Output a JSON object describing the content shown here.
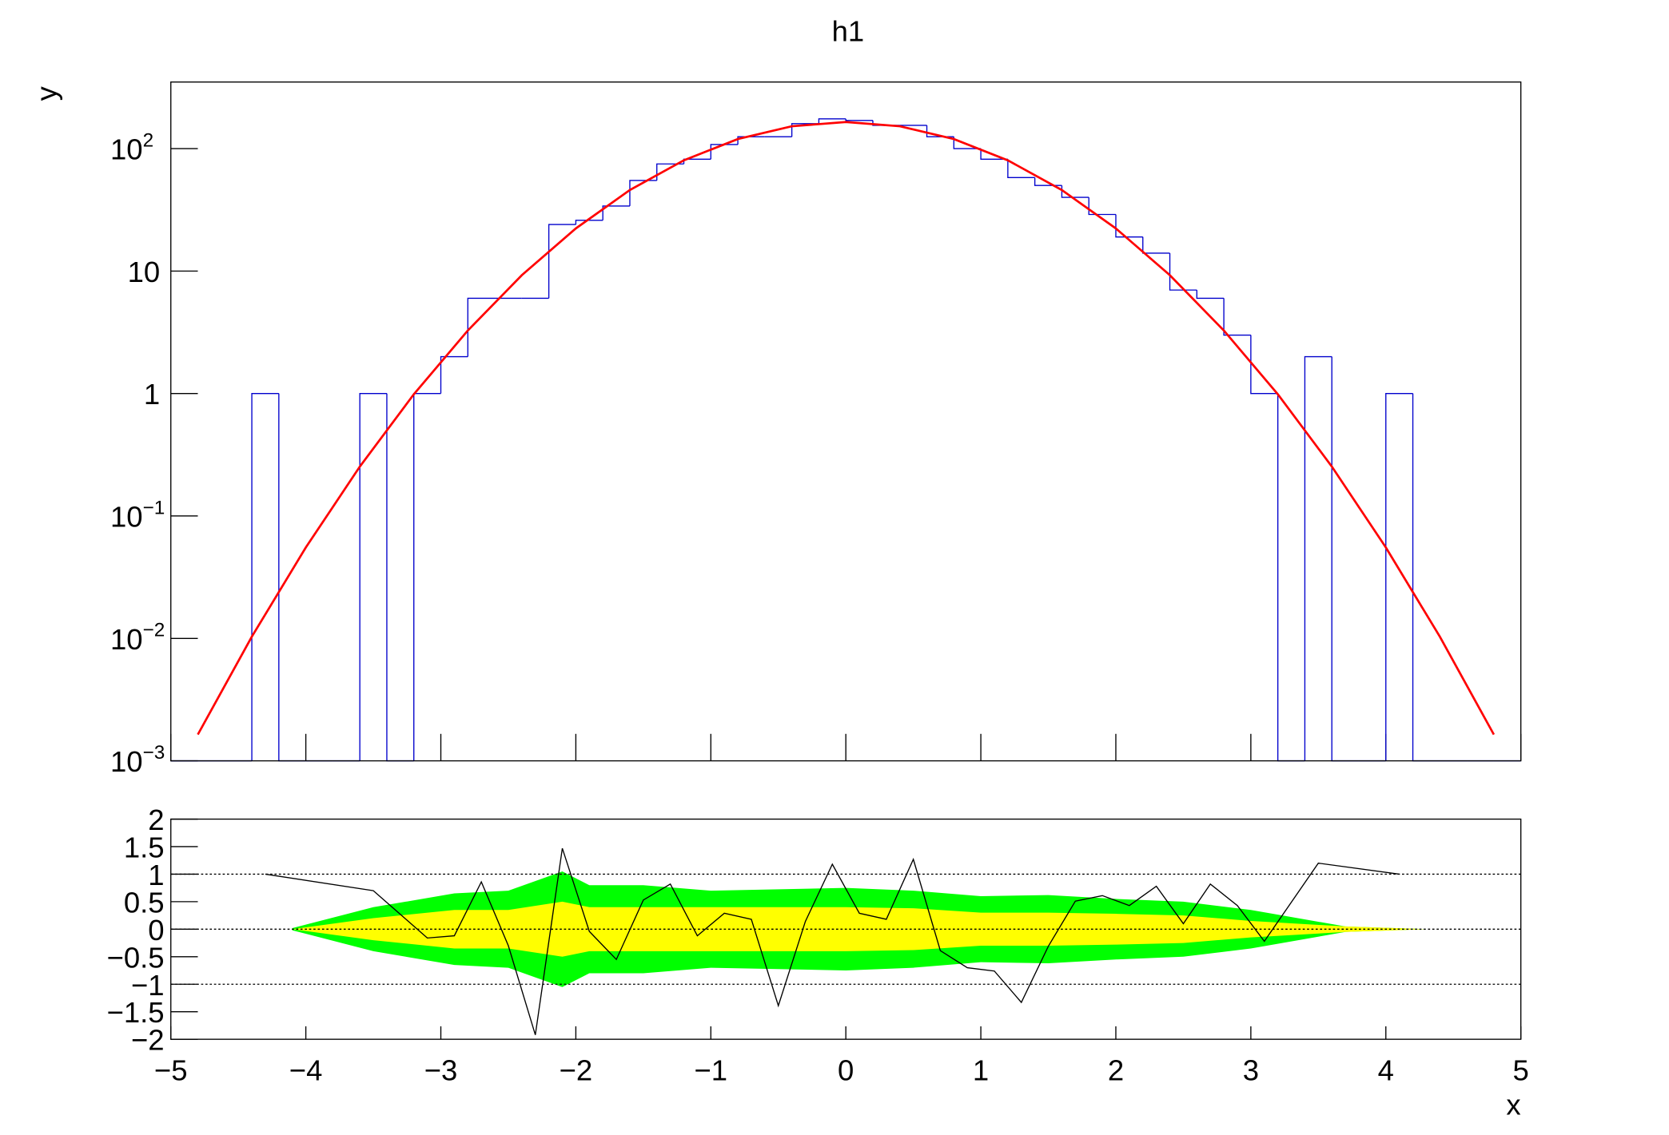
{
  "chart_data": [
    {
      "type": "histogram",
      "title": "h1",
      "y_label": "y",
      "log_y": true,
      "color": "#0000cc",
      "bins": [
        -5,
        -4.8,
        -4.6,
        -4.4,
        -4.2,
        -4,
        -3.8,
        -3.6,
        -3.4,
        -3.2,
        -3,
        -2.8,
        -2.6,
        -2.4,
        -2.2,
        -2,
        -1.8,
        -1.6,
        -1.4,
        -1.2,
        -1,
        -0.8,
        -0.6,
        -0.4,
        -0.2,
        0,
        0.2,
        0.4,
        0.6,
        0.8,
        1,
        1.2,
        1.4,
        1.6,
        1.8,
        2,
        2.2,
        2.4,
        2.6,
        2.8,
        3,
        3.2,
        3.4,
        3.6,
        3.8,
        4,
        4.2,
        4.4,
        4.6,
        4.8,
        5
      ],
      "values": [
        0,
        0,
        0,
        1,
        0,
        0,
        0,
        1,
        0,
        1,
        2,
        6,
        6,
        6,
        24,
        26,
        34,
        55,
        75,
        82,
        108,
        125,
        125,
        160,
        175,
        170,
        155,
        155,
        125,
        100,
        82,
        58,
        50,
        40,
        29,
        19,
        14,
        7,
        6,
        3,
        1,
        0,
        2,
        0,
        0,
        1,
        0,
        0,
        0,
        0
      ],
      "fit": {
        "name": "gaus",
        "color": "#ff0000",
        "x": [
          -4.8,
          -4.4,
          -4,
          -3.6,
          -3.2,
          -2.8,
          -2.4,
          -2,
          -1.6,
          -1.2,
          -0.8,
          -0.4,
          0,
          0.4,
          0.8,
          1.2,
          1.6,
          2,
          2.4,
          2.8,
          3.2,
          3.6,
          4,
          4.4,
          4.8
        ],
        "values": [
          0.00164,
          0.01033,
          0.0553,
          0.253,
          0.986,
          3.27,
          9.26,
          22.3,
          45.9,
          80.3,
          119.8,
          152.3,
          165,
          152.3,
          119.8,
          80.3,
          45.9,
          22.3,
          9.26,
          3.27,
          0.986,
          0.253,
          0.0553,
          0.01033,
          0.00164
        ]
      },
      "xlim": [
        -5,
        5
      ],
      "xticks": [
        -5,
        -4,
        -3,
        -2,
        -1,
        0,
        1,
        2,
        3,
        4,
        5
      ],
      "ylim": [
        0.001,
        350
      ],
      "yticks": [
        {
          "value": 0.001,
          "label": "10",
          "exponent": "−3"
        },
        {
          "value": 0.01,
          "label": "10",
          "exponent": "−2"
        },
        {
          "value": 0.1,
          "label": "10",
          "exponent": "−1"
        },
        1,
        10,
        {
          "value": 100,
          "label": "10",
          "exponent": "2"
        }
      ]
    },
    {
      "type": "line",
      "x_label": "x",
      "color": "#000000",
      "x": [
        -4.3,
        -3.5,
        -3.1,
        -2.9,
        -2.7,
        -2.5,
        -2.3,
        -2.1,
        -1.9,
        -1.7,
        -1.5,
        -1.3,
        -1.1,
        -0.9,
        -0.7,
        -0.5,
        -0.3,
        -0.1,
        0.1,
        0.3,
        0.5,
        0.7,
        0.9,
        1.1,
        1.3,
        1.5,
        1.7,
        1.9,
        2.1,
        2.3,
        2.5,
        2.7,
        2.9,
        3.1,
        3.5,
        4.1
      ],
      "values": [
        1.0,
        0.7,
        -0.16,
        -0.12,
        0.86,
        -0.3,
        -1.92,
        1.47,
        -0.04,
        -0.55,
        0.53,
        0.82,
        -0.12,
        0.29,
        0.18,
        -1.39,
        0.14,
        1.18,
        0.29,
        0.18,
        1.27,
        -0.39,
        -0.7,
        -0.76,
        -1.33,
        -0.31,
        0.51,
        0.61,
        0.43,
        0.78,
        0.1,
        0.82,
        0.43,
        -0.22,
        1.2,
        1.0
      ],
      "bands": {
        "x": [
          -4.1,
          -3.5,
          -2.9,
          -2.5,
          -2.1,
          -1.9,
          -1.5,
          -1,
          0,
          0.5,
          1,
          1.5,
          2,
          2.5,
          3,
          3.7,
          4.3
        ],
        "sigma1": {
          "color": "#ffff00",
          "values": [
            0,
            0.2,
            0.35,
            0.35,
            0.5,
            0.4,
            0.4,
            0.4,
            0.4,
            0.38,
            0.3,
            0.3,
            0.28,
            0.25,
            0.15,
            0.05,
            0
          ]
        },
        "sigma2": {
          "color": "#00ff00",
          "values": [
            0.02,
            0.4,
            0.65,
            0.7,
            1.05,
            0.8,
            0.8,
            0.7,
            0.75,
            0.7,
            0.6,
            0.62,
            0.55,
            0.5,
            0.35,
            0.05,
            0
          ]
        }
      },
      "hlines": [
        -1,
        0,
        1
      ],
      "xlim": [
        -5,
        5
      ],
      "xticks": [
        {
          "value": -5,
          "label": "−5"
        },
        {
          "value": -4,
          "label": "−4"
        },
        {
          "value": -3,
          "label": "−3"
        },
        {
          "value": -2,
          "label": "−2"
        },
        {
          "value": -1,
          "label": "−1"
        },
        0,
        1,
        2,
        3,
        4,
        5
      ],
      "ylim": [
        -2,
        2
      ],
      "yticks": [
        {
          "value": -2,
          "label": "−2"
        },
        {
          "value": -1.5,
          "label": "−1.5"
        },
        {
          "value": -1,
          "label": "−1"
        },
        {
          "value": -0.5,
          "label": "−0.5"
        },
        0,
        0.5,
        1,
        1.5,
        2
      ]
    }
  ]
}
